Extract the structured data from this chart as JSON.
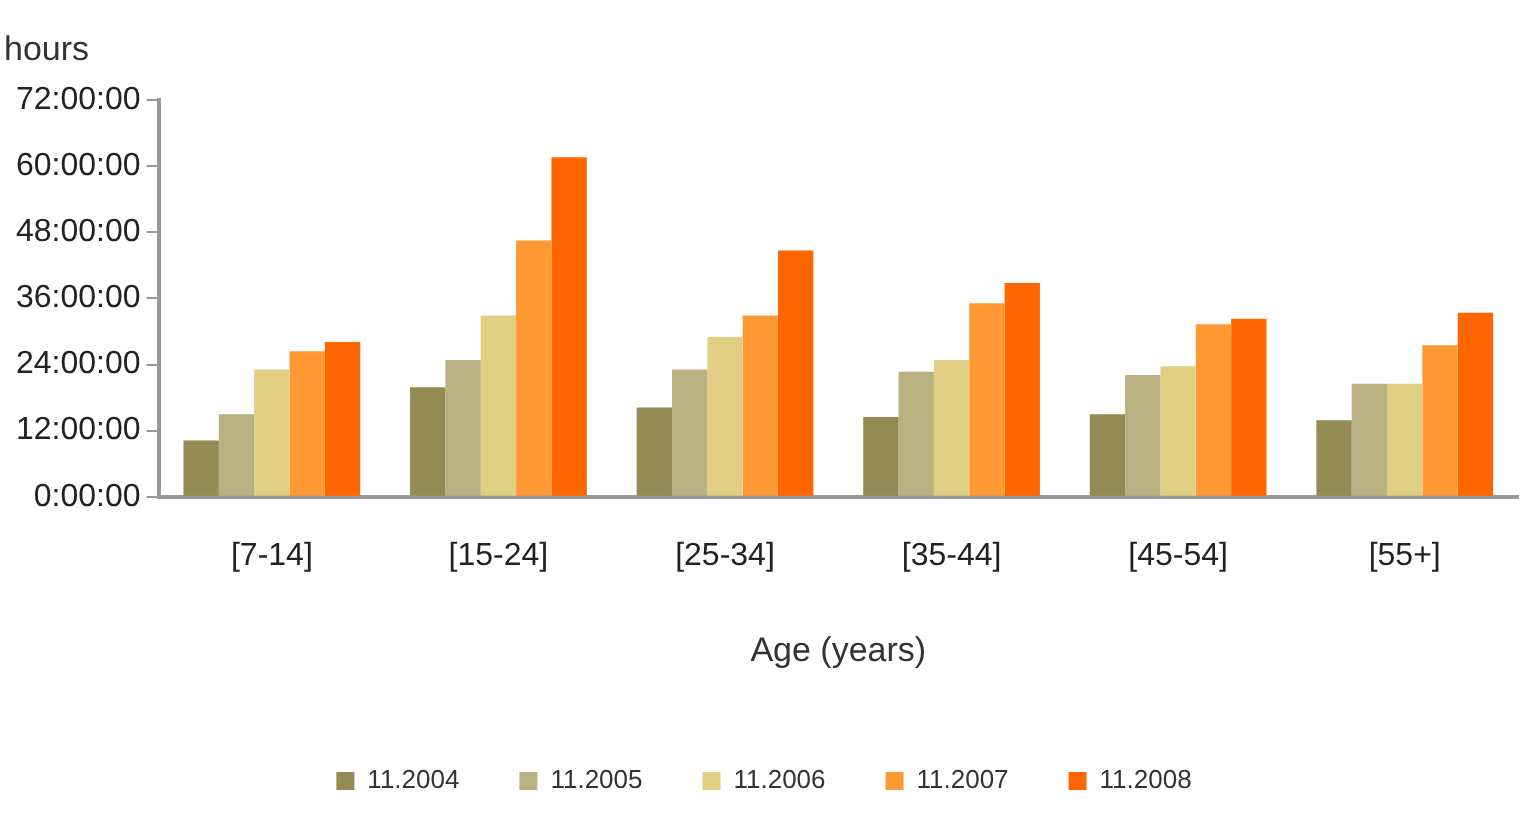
{
  "chart_data": {
    "type": "bar",
    "ylabel": "hours",
    "xlabel": "Age (years)",
    "categories": [
      "[7-14]",
      "[15-24]",
      "[25-34]",
      "[35-44]",
      "[45-54]",
      "[55+]"
    ],
    "series": [
      {
        "name": "11.2004",
        "color": "#948a54",
        "values": [
          10.2,
          19.9,
          16.2,
          14.5,
          15.0,
          13.9
        ]
      },
      {
        "name": "11.2005",
        "color": "#bab182",
        "values": [
          15.0,
          24.8,
          23.1,
          22.7,
          22.1,
          20.5
        ]
      },
      {
        "name": "11.2006",
        "color": "#e0cf83",
        "values": [
          23.1,
          32.9,
          29.0,
          24.8,
          23.7,
          20.5
        ]
      },
      {
        "name": "11.2007",
        "color": "#ff9933",
        "values": [
          26.4,
          46.5,
          32.9,
          35.1,
          31.3,
          27.5
        ]
      },
      {
        "name": "11.2008",
        "color": "#ff6600",
        "values": [
          28.1,
          61.6,
          44.7,
          38.8,
          32.3,
          33.4
        ]
      }
    ],
    "ylim": [
      0,
      72
    ],
    "yticks": [
      {
        "value": 0,
        "label": "0:00:00"
      },
      {
        "value": 12,
        "label": "12:00:00"
      },
      {
        "value": 24,
        "label": "24:00:00"
      },
      {
        "value": 36,
        "label": "36:00:00"
      },
      {
        "value": 48,
        "label": "48:00:00"
      },
      {
        "value": 60,
        "label": "60:00:00"
      },
      {
        "value": 72,
        "label": "72:00:00"
      }
    ],
    "grid": false,
    "legend": "bottom"
  }
}
